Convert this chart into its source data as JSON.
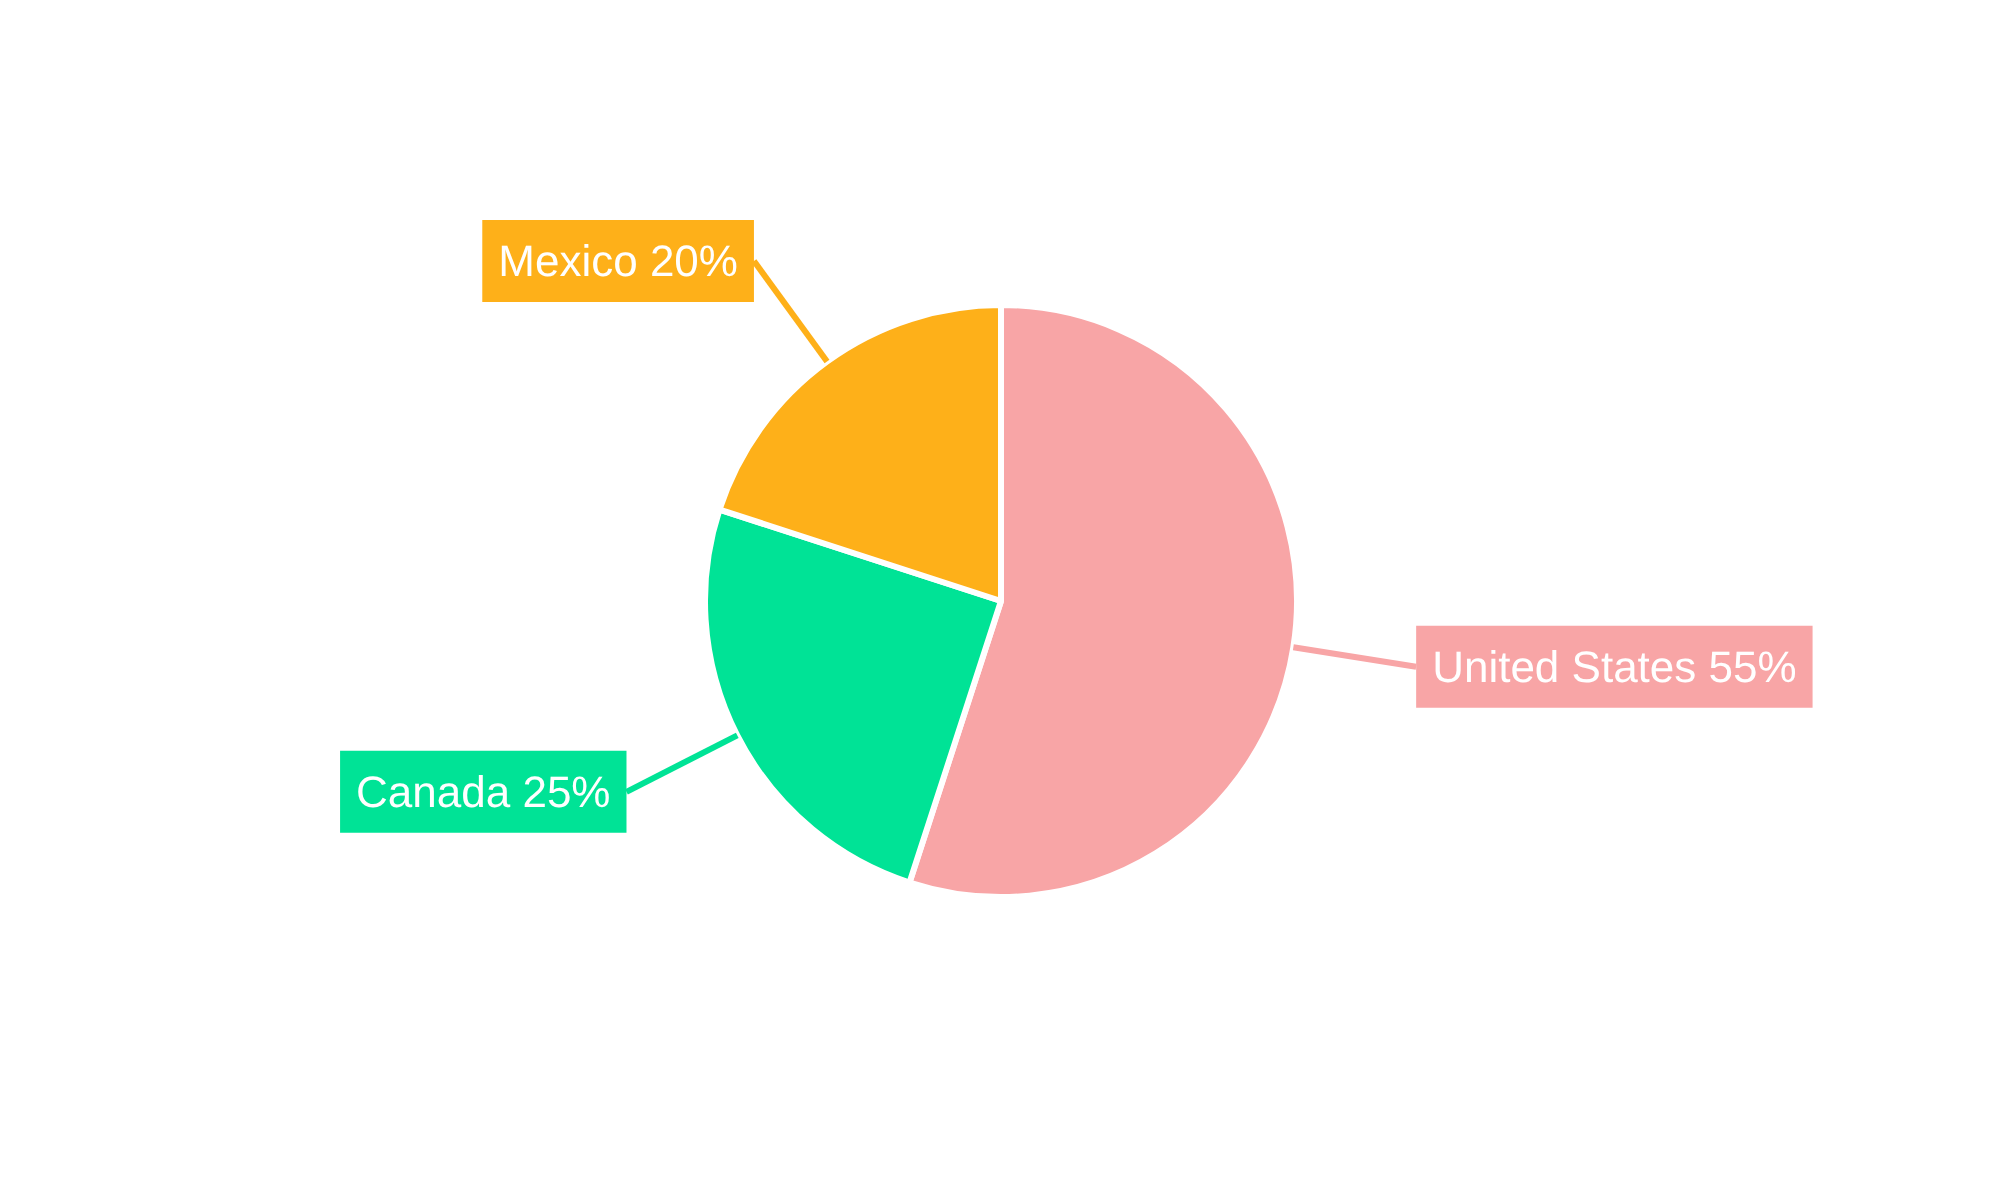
{
  "chart_data": {
    "type": "pie",
    "categories": [
      "United States",
      "Canada",
      "Mexico"
    ],
    "values": [
      55,
      25,
      20
    ],
    "colors": [
      "#f8a5a6",
      "#00e396",
      "#feb019"
    ],
    "value_labels": [
      "55%",
      "25%",
      "20%"
    ]
  }
}
